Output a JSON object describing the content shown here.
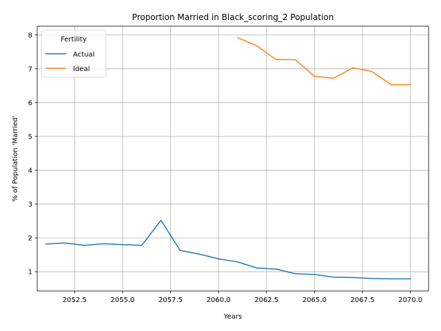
{
  "chart_data": {
    "type": "line",
    "title": "Proportion Married in Black_scoring_2 Population",
    "xlabel": "Years",
    "ylabel": "% of Population 'Married'",
    "xlim": [
      2050.55,
      2070.95
    ],
    "ylim": [
      0.43,
      8.26
    ],
    "xticks": [
      2052.5,
      2055.0,
      2057.5,
      2060.0,
      2062.5,
      2065.0,
      2067.5,
      2070.0
    ],
    "xtick_labels": [
      "2052.5",
      "2055.0",
      "2057.5",
      "2060.0",
      "2062.5",
      "2065.0",
      "2067.5",
      "2070.0"
    ],
    "yticks": [
      1,
      2,
      3,
      4,
      5,
      6,
      7,
      8
    ],
    "ytick_labels": [
      "1",
      "2",
      "3",
      "4",
      "5",
      "6",
      "7",
      "8"
    ],
    "grid": true,
    "legend": {
      "title": "Fertility",
      "placement": "upper-left"
    },
    "series": [
      {
        "name": "Actual",
        "color": "#1f77b4",
        "x": [
          2051,
          2052,
          2053,
          2054,
          2055,
          2056,
          2057,
          2058,
          2059,
          2060,
          2061,
          2062,
          2063,
          2064,
          2065,
          2066,
          2067,
          2068,
          2069,
          2070
        ],
        "y": [
          1.82,
          1.85,
          1.78,
          1.83,
          1.8,
          1.78,
          2.52,
          1.63,
          1.52,
          1.38,
          1.29,
          1.11,
          1.08,
          0.94,
          0.92,
          0.84,
          0.83,
          0.8,
          0.79,
          0.79
        ]
      },
      {
        "name": "Ideal",
        "color": "#ff7f0e",
        "x": [
          2061,
          2062,
          2063,
          2064,
          2065,
          2066,
          2067,
          2068,
          2069,
          2070
        ],
        "y": [
          7.92,
          7.68,
          7.27,
          7.27,
          6.78,
          6.72,
          7.03,
          6.92,
          6.53,
          6.53
        ]
      }
    ]
  }
}
